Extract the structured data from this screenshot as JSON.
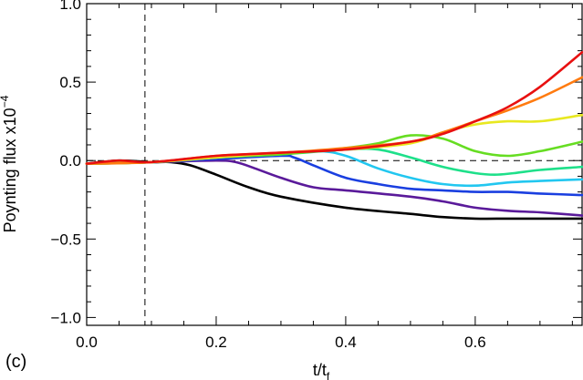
{
  "chart_data": {
    "type": "line",
    "panel_label": "(c)",
    "ylabel": {
      "base": "Poynting flux x10",
      "exponent": "−4"
    },
    "xlabel": {
      "base": "t/t",
      "subscript": "f"
    },
    "xlim": [
      0.0,
      0.765
    ],
    "ylim": [
      -1.05,
      1.0
    ],
    "x_ticks": [
      0.0,
      0.2,
      0.4,
      0.6
    ],
    "x_tick_labels": [
      "0.0",
      "0.2",
      "0.4",
      "0.6"
    ],
    "y_ticks": [
      -1.0,
      -0.5,
      0.0,
      0.5,
      1.0
    ],
    "y_tick_labels": [
      "−1.0",
      "−0.5",
      "0.0",
      "0.5",
      "1.0"
    ],
    "reference_lines": {
      "horizontal_dashed_y": 0.0,
      "vertical_dashed_x": 0.09
    },
    "grid": false,
    "series": [
      {
        "color": "#000000",
        "x": [
          0,
          0.05,
          0.1,
          0.13,
          0.16,
          0.2,
          0.25,
          0.3,
          0.4,
          0.5,
          0.55,
          0.6,
          0.65,
          0.7,
          0.765
        ],
        "y": [
          -0.02,
          0.0,
          -0.01,
          -0.01,
          -0.03,
          -0.09,
          -0.17,
          -0.23,
          -0.3,
          -0.34,
          -0.36,
          -0.37,
          -0.37,
          -0.37,
          -0.37
        ]
      },
      {
        "color": "#5a1a9a",
        "x": [
          0,
          0.1,
          0.2,
          0.23,
          0.26,
          0.3,
          0.35,
          0.4,
          0.5,
          0.55,
          0.6,
          0.65,
          0.7,
          0.765
        ],
        "y": [
          -0.02,
          -0.01,
          0.0,
          -0.01,
          -0.05,
          -0.11,
          -0.17,
          -0.19,
          -0.23,
          -0.26,
          -0.3,
          -0.32,
          -0.33,
          -0.35
        ]
      },
      {
        "color": "#1a3fe0",
        "x": [
          0,
          0.1,
          0.2,
          0.3,
          0.32,
          0.35,
          0.4,
          0.45,
          0.5,
          0.55,
          0.6,
          0.65,
          0.7,
          0.765
        ],
        "y": [
          -0.02,
          -0.01,
          0.01,
          0.03,
          0.02,
          -0.03,
          -0.11,
          -0.15,
          -0.18,
          -0.19,
          -0.2,
          -0.2,
          -0.21,
          -0.22
        ]
      },
      {
        "color": "#22c7f0",
        "x": [
          0,
          0.1,
          0.2,
          0.3,
          0.36,
          0.4,
          0.45,
          0.5,
          0.55,
          0.6,
          0.65,
          0.7,
          0.765
        ],
        "y": [
          -0.02,
          -0.01,
          0.02,
          0.04,
          0.06,
          0.03,
          -0.05,
          -0.11,
          -0.15,
          -0.16,
          -0.14,
          -0.13,
          -0.12
        ]
      },
      {
        "color": "#1ee08a",
        "x": [
          0,
          0.1,
          0.2,
          0.3,
          0.4,
          0.45,
          0.5,
          0.55,
          0.6,
          0.63,
          0.66,
          0.7,
          0.765
        ],
        "y": [
          -0.02,
          -0.01,
          0.02,
          0.04,
          0.07,
          0.07,
          0.02,
          -0.04,
          -0.08,
          -0.09,
          -0.08,
          -0.06,
          -0.04
        ]
      },
      {
        "color": "#66dd22",
        "x": [
          0,
          0.1,
          0.2,
          0.3,
          0.4,
          0.45,
          0.5,
          0.55,
          0.6,
          0.65,
          0.7,
          0.765
        ],
        "y": [
          -0.02,
          -0.01,
          0.02,
          0.04,
          0.08,
          0.11,
          0.16,
          0.14,
          0.06,
          0.03,
          0.06,
          0.12
        ]
      },
      {
        "color": "#e8e820",
        "x": [
          0,
          0.1,
          0.2,
          0.3,
          0.4,
          0.5,
          0.55,
          0.6,
          0.65,
          0.7,
          0.765
        ],
        "y": [
          -0.02,
          -0.01,
          0.02,
          0.05,
          0.07,
          0.11,
          0.18,
          0.23,
          0.25,
          0.25,
          0.29
        ]
      },
      {
        "color": "#ff7b10",
        "x": [
          0,
          0.1,
          0.2,
          0.3,
          0.4,
          0.5,
          0.55,
          0.6,
          0.65,
          0.7,
          0.765
        ],
        "y": [
          -0.02,
          -0.01,
          0.03,
          0.05,
          0.08,
          0.12,
          0.18,
          0.25,
          0.32,
          0.4,
          0.53
        ]
      },
      {
        "color": "#e81010",
        "x": [
          0,
          0.05,
          0.1,
          0.2,
          0.3,
          0.4,
          0.5,
          0.55,
          0.6,
          0.65,
          0.7,
          0.765
        ],
        "y": [
          -0.02,
          0.0,
          -0.01,
          0.03,
          0.05,
          0.07,
          0.12,
          0.17,
          0.25,
          0.34,
          0.47,
          0.69
        ]
      }
    ]
  }
}
